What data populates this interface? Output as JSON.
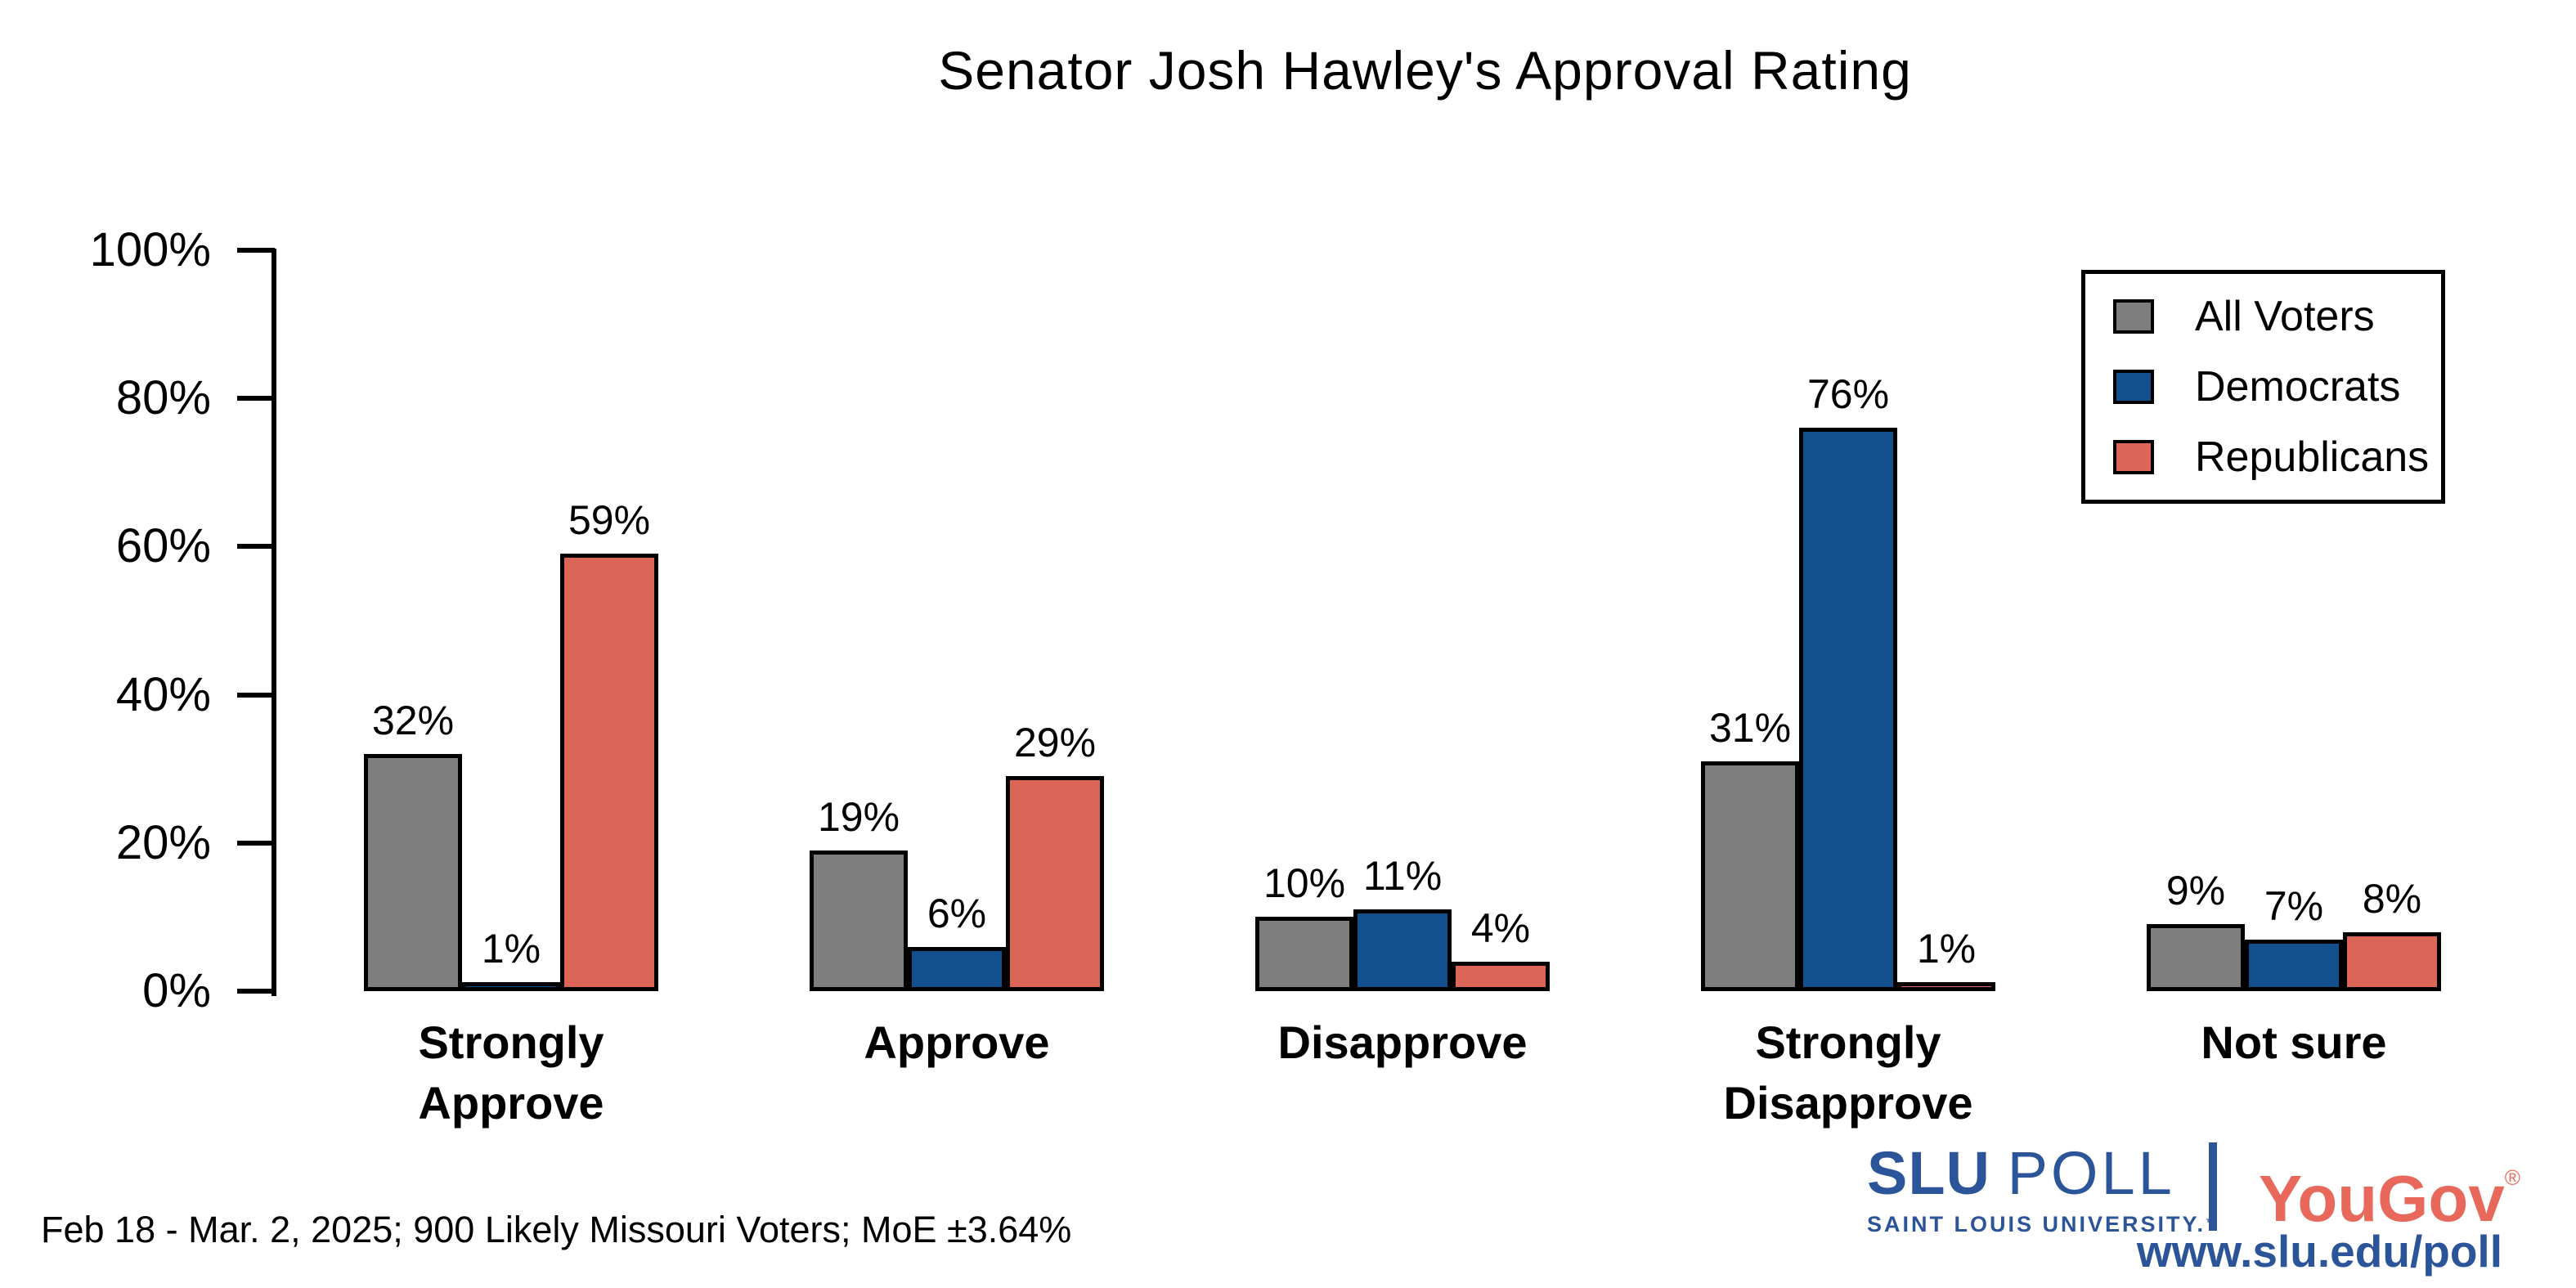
{
  "title": "Senator Josh Hawley's Approval Rating",
  "chart_data": {
    "type": "bar",
    "title": "Senator Josh Hawley's Approval Rating",
    "categories": [
      "Strongly\nApprove",
      "Approve",
      "Disapprove",
      "Strongly\nDisapprove",
      "Not sure"
    ],
    "series": [
      {
        "name": "All Voters",
        "color": "#7E7E7E",
        "values": [
          32,
          19,
          10,
          31,
          9
        ]
      },
      {
        "name": "Democrats",
        "color": "#134F8D",
        "values": [
          1,
          6,
          11,
          76,
          7
        ]
      },
      {
        "name": "Republicans",
        "color": "#DB6557",
        "values": [
          59,
          29,
          4,
          1,
          8
        ]
      }
    ],
    "value_label_suffix": "%",
    "xlabel": "",
    "ylabel": "",
    "ylim": [
      0,
      100
    ],
    "yticks": [
      0,
      20,
      40,
      60,
      80,
      100
    ],
    "ytick_suffix": "%",
    "grid": false,
    "legend_position": "top-right"
  },
  "legend": {
    "entries": [
      "All Voters",
      "Democrats",
      "Republicans"
    ]
  },
  "footer": {
    "source_note": "Feb 18 - Mar. 2, 2025; 900 Likely Missouri Voters; MoE ±3.64%",
    "slu": {
      "wordmark_bold": "SLU",
      "wordmark_light": "POLL",
      "subtitle": "SAINT LOUIS UNIVERSITY.",
      "trademark": "™",
      "blue": "#2B5499"
    },
    "yougov": {
      "wordmark": "YouGov",
      "registered": "®",
      "red": "#E8695B"
    },
    "url": "www.slu.edu/poll"
  }
}
